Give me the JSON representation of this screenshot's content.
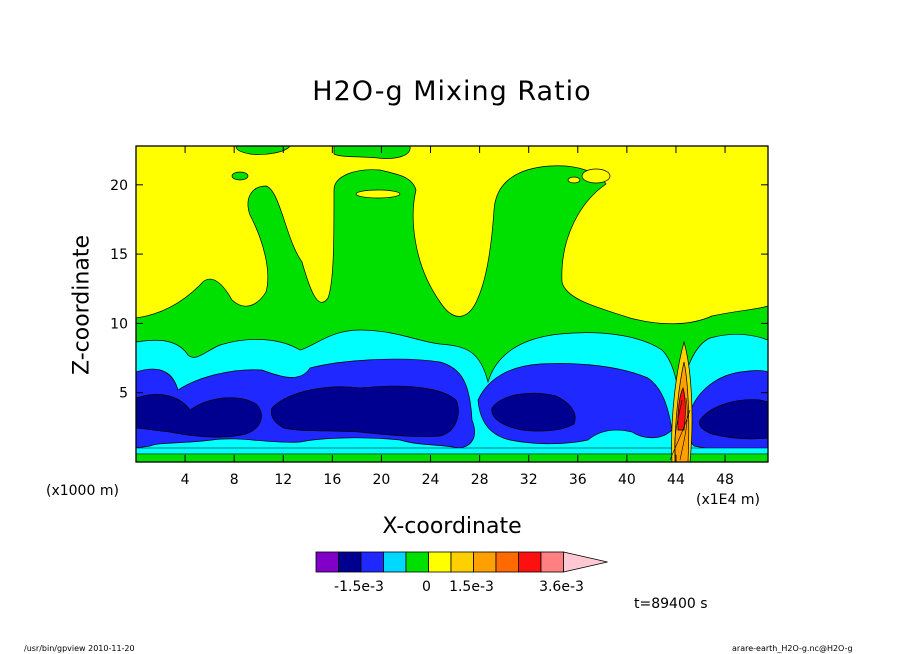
{
  "chart_data": {
    "type": "heatmap",
    "title": "H2O-g Mixing Ratio",
    "xlabel": "X-coordinate",
    "ylabel": "Z-coordinate",
    "x_unit_label": "(x1000 m)",
    "x_scale_label": "(x1E4 m)",
    "xlim": [
      0,
      51.5
    ],
    "ylim": [
      0,
      22.8
    ],
    "xticks": [
      "4",
      "8",
      "12",
      "16",
      "20",
      "24",
      "28",
      "32",
      "36",
      "40",
      "44",
      "48"
    ],
    "yticks": [
      "5",
      "10",
      "15",
      "20"
    ],
    "colorbar": {
      "levels": [
        "-1.5e-3",
        "0",
        "1.5e-3",
        "3.6e-3"
      ],
      "colors": [
        "#8000c8",
        "#000090",
        "#1e28ff",
        "#00d8ff",
        "#00e000",
        "#ffff00",
        "#ffd000",
        "#ffa000",
        "#ff6a00",
        "#ff1010",
        "#ff8080",
        "#ffc8d2"
      ]
    },
    "time_label": "t=89400 s"
  },
  "footer": {
    "left": "/usr/bin/gpview   2010-11-20",
    "right": "arare-earth_H2O-g.nc@H2O-g"
  }
}
